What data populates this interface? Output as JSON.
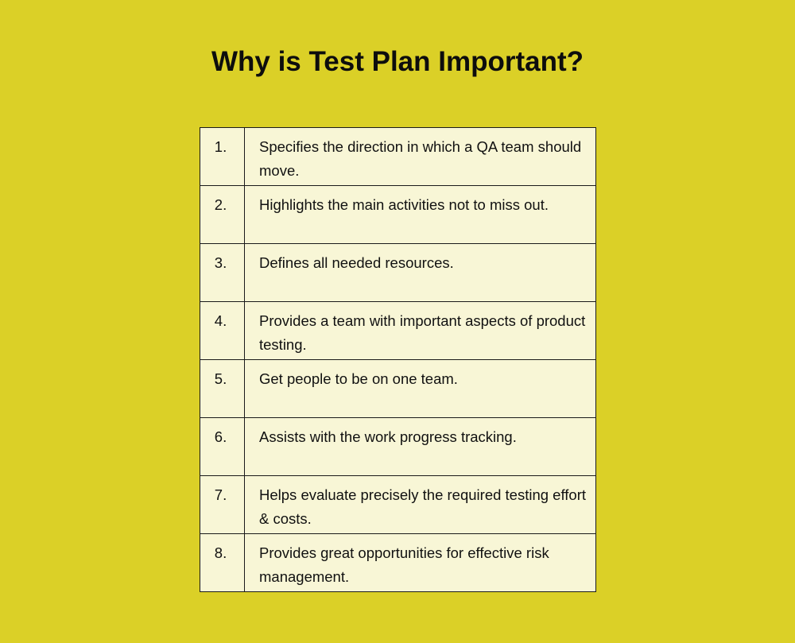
{
  "title": "Why is Test Plan Important?",
  "rows": [
    {
      "num": "1.",
      "text": "Specifies the direction in which a QA team should move."
    },
    {
      "num": "2.",
      "text": "Highlights the main activities not to miss out."
    },
    {
      "num": "3.",
      "text": "Defines all needed resources."
    },
    {
      "num": "4.",
      "text": "Provides a team with important aspects of product testing."
    },
    {
      "num": "5.",
      "text": "Get people to be on one team."
    },
    {
      "num": "6.",
      "text": "Assists with the work progress tracking."
    },
    {
      "num": "7.",
      "text": "Helps evaluate precisely the required testing effort & costs."
    },
    {
      "num": "8.",
      "text": "Provides great opportunities for effective risk management."
    }
  ],
  "colors": {
    "background": "#dbd027",
    "cell": "#f8f6d6",
    "border": "#1a1a1a"
  }
}
